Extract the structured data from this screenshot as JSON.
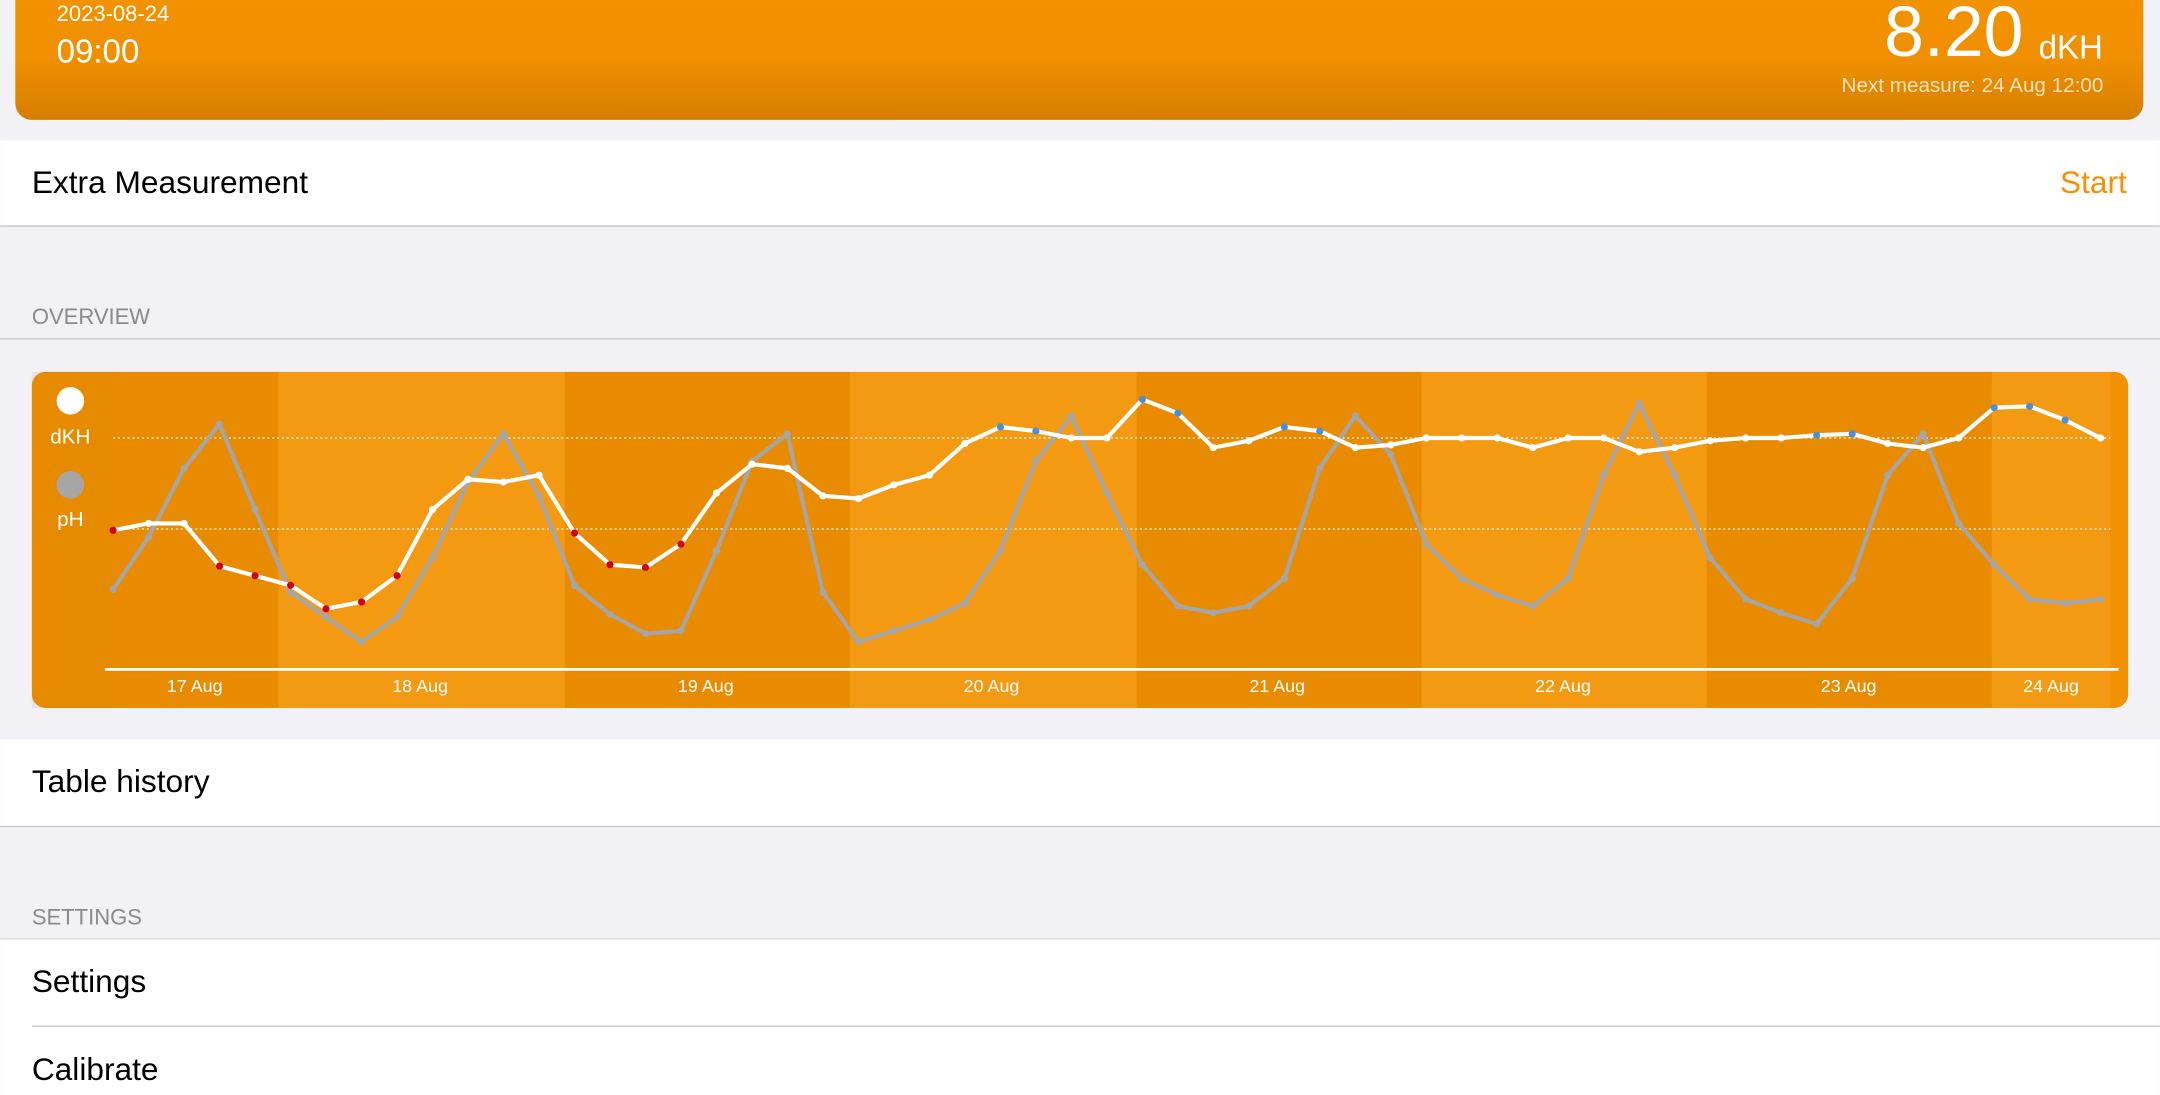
{
  "header": {
    "date": "2023-08-24",
    "time": "09:00",
    "value": "8.20",
    "unit": "dKH",
    "next": "Next measure: 24 Aug 12:00"
  },
  "rows": {
    "extra": "Extra Measurement",
    "start": "Start",
    "table": "Table history"
  },
  "sections": [
    "OVERVIEW",
    "SETTINGS"
  ],
  "settings_rows": [
    "Settings",
    "Calibrate"
  ],
  "chart_data": {
    "type": "line",
    "series": [
      {
        "name": "dKH",
        "color": "#ffffff",
        "values": [
          101,
          106,
          106,
          75,
          68,
          61,
          44,
          49,
          68,
          116,
          138,
          136,
          141,
          99,
          76,
          74,
          91,
          128,
          149,
          146,
          126,
          124,
          134,
          141,
          164,
          176,
          173,
          168,
          168,
          196,
          186,
          161,
          166,
          176,
          173,
          161,
          163,
          168,
          168,
          168,
          161,
          168,
          168,
          158,
          161,
          166,
          168,
          168,
          170,
          171,
          164,
          161,
          168,
          190,
          191,
          181,
          168
        ]
      },
      {
        "name": "pH",
        "color": "#a6a6a6",
        "values": [
          58,
          96,
          146,
          178,
          116,
          56,
          38,
          20,
          38,
          81,
          136,
          171,
          126,
          61,
          40,
          26,
          28,
          86,
          151,
          171,
          56,
          20,
          28,
          36,
          48,
          86,
          151,
          184,
          128,
          76,
          46,
          41,
          46,
          66,
          146,
          184,
          156,
          91,
          66,
          54,
          46,
          66,
          141,
          193,
          141,
          81,
          51,
          41,
          33,
          66,
          141,
          171,
          106,
          76,
          51,
          48,
          51
        ]
      }
    ],
    "xlim": [
      0,
      56
    ],
    "ylim": [
      0,
      216
    ],
    "xticks": [
      {
        "value": 2.3,
        "label": "17 Aug"
      },
      {
        "value": 8.65,
        "label": "18 Aug"
      },
      {
        "value": 16.7,
        "label": "19 Aug"
      },
      {
        "value": 24.75,
        "label": "20 Aug"
      },
      {
        "value": 32.8,
        "label": "21 Aug"
      },
      {
        "value": 40.85,
        "label": "22 Aug"
      },
      {
        "value": 48.9,
        "label": "23 Aug"
      },
      {
        "value": 54.6,
        "label": "24 Aug"
      }
    ],
    "reference_lines": [
      168,
      102
    ],
    "low_color": "#d0021b",
    "high_color": "#4a90d9"
  }
}
